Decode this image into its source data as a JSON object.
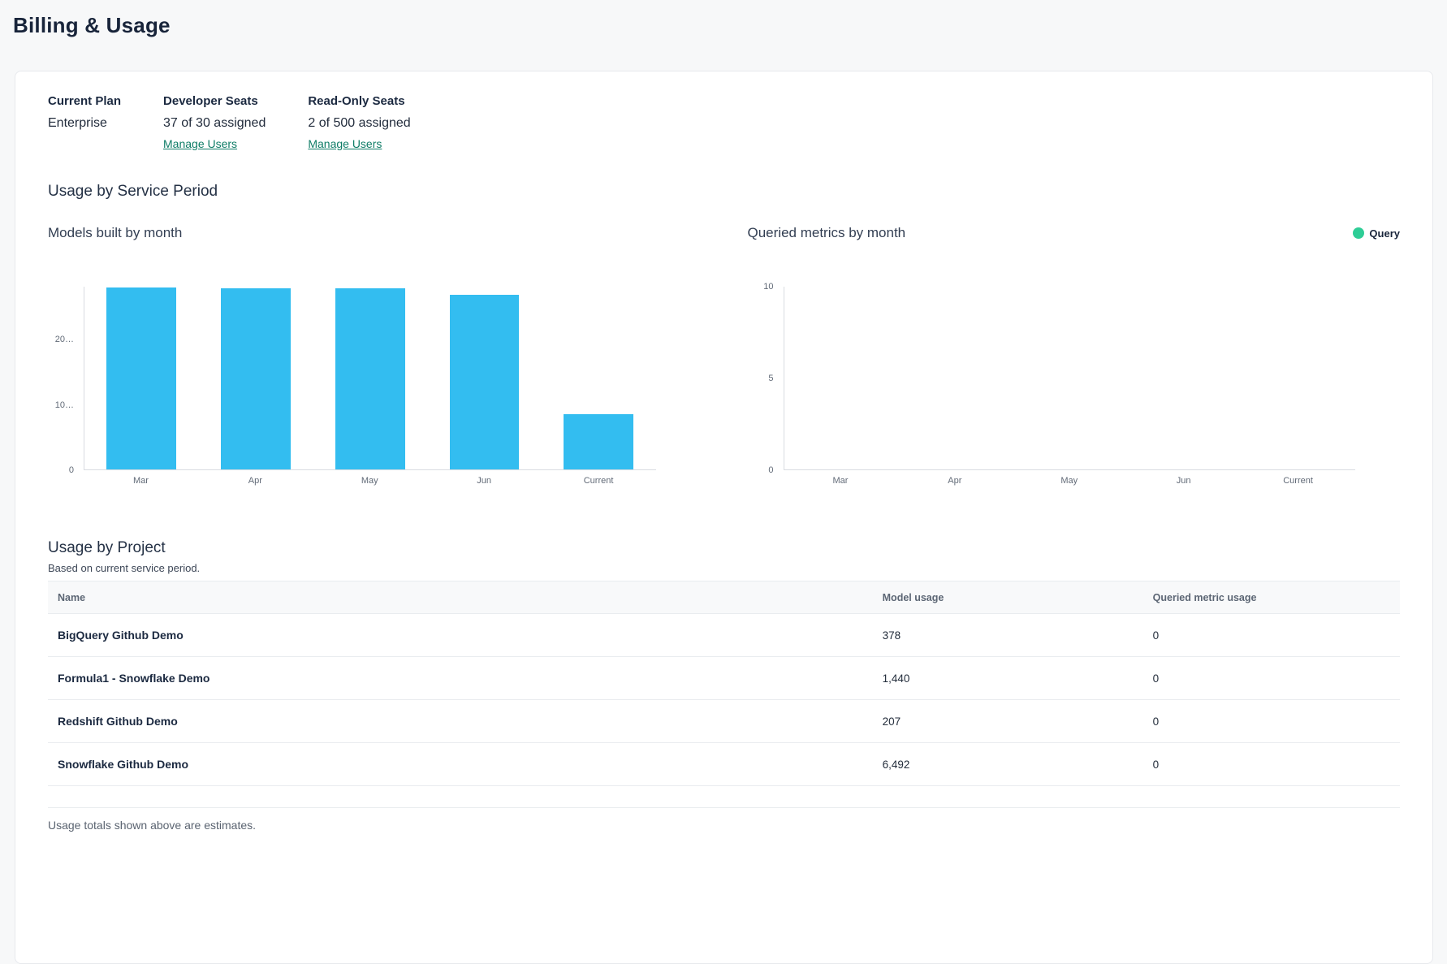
{
  "page": {
    "title": "Billing & Usage"
  },
  "plan": {
    "current_plan": {
      "label": "Current Plan",
      "value": "Enterprise"
    },
    "developer_seats": {
      "label": "Developer Seats",
      "value": "37 of 30 assigned",
      "link": "Manage Users"
    },
    "readonly_seats": {
      "label": "Read-Only Seats",
      "value": "2 of 500 assigned",
      "link": "Manage Users"
    }
  },
  "usage_section": {
    "title": "Usage by Service Period"
  },
  "chart_data": [
    {
      "type": "bar",
      "title": "Models built by month",
      "categories": [
        "Mar",
        "Apr",
        "May",
        "Jun",
        "Current"
      ],
      "values": [
        27950,
        27900,
        27800,
        26850,
        8517
      ],
      "ylim": [
        0,
        28100
      ],
      "yticks": [
        {
          "value": 0,
          "label": "0"
        },
        {
          "value": 10000,
          "label": "10…"
        },
        {
          "value": 20000,
          "label": "20…"
        }
      ],
      "bar_color": "#33bdf0",
      "grid": false,
      "legend": null,
      "xlabel": "",
      "ylabel": ""
    },
    {
      "type": "bar",
      "title": "Queried metrics by month",
      "categories": [
        "Mar",
        "Apr",
        "May",
        "Jun",
        "Current"
      ],
      "series": [
        {
          "name": "Query",
          "values": [
            0,
            0,
            0,
            0,
            0
          ],
          "color": "#2ecd96"
        }
      ],
      "ylim": [
        0,
        10
      ],
      "yticks": [
        {
          "value": 0,
          "label": "0"
        },
        {
          "value": 5,
          "label": "5"
        },
        {
          "value": 10,
          "label": "10"
        }
      ],
      "grid": false,
      "legend": {
        "label": "Query",
        "color": "#2ecd96",
        "position": "top-right"
      },
      "xlabel": "",
      "ylabel": ""
    }
  ],
  "project_section": {
    "title": "Usage by Project",
    "subtitle": "Based on current service period.",
    "table": {
      "columns": [
        "Name",
        "Model usage",
        "Queried metric usage"
      ],
      "rows": [
        {
          "name": "BigQuery Github Demo",
          "model_usage": "378",
          "queried_metric_usage": "0"
        },
        {
          "name": "Formula1 - Snowflake Demo",
          "model_usage": "1,440",
          "queried_metric_usage": "0"
        },
        {
          "name": "Redshift Github Demo",
          "model_usage": "207",
          "queried_metric_usage": "0"
        },
        {
          "name": "Snowflake Github Demo",
          "model_usage": "6,492",
          "queried_metric_usage": "0"
        }
      ]
    },
    "footnote": "Usage totals shown above are estimates."
  },
  "colors": {
    "bar_blue": "#33bdf0",
    "legend_green": "#2ecd96",
    "link_teal": "#0e7c66",
    "page_background": "#f7f8f9"
  }
}
